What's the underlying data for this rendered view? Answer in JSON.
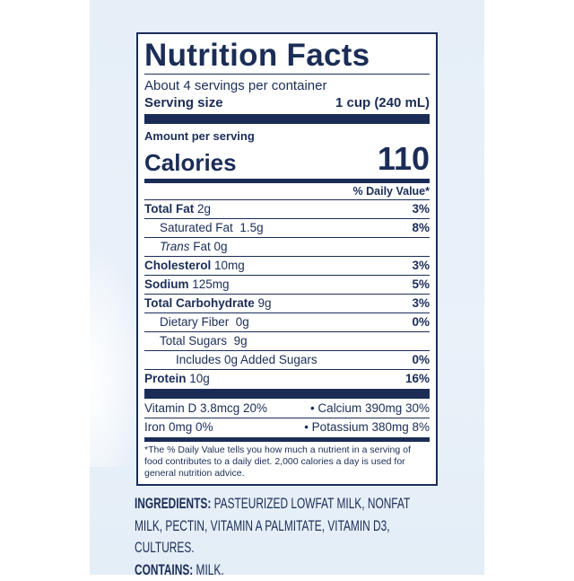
{
  "label": {
    "title": "Nutrition Facts",
    "servings": "About 4 servings per container",
    "serving_size_label": "Serving size",
    "serving_size_value": "1 cup (240 mL)",
    "amount_per_serving": "Amount per serving",
    "calories_label": "Calories",
    "calories_value": "110",
    "dv_header": "% Daily Value*",
    "nutrients": [
      {
        "name": "Total Fat",
        "amount": "2g",
        "dv": "3%"
      },
      {
        "name": "Saturated Fat",
        "amount": "1.5g",
        "dv": "8%"
      },
      {
        "name": "Trans",
        "name_rest": "Fat 0g",
        "amount": "",
        "dv": ""
      },
      {
        "name": "Cholesterol",
        "amount": "10mg",
        "dv": "3%"
      },
      {
        "name": "Sodium",
        "amount": "125mg",
        "dv": "5%"
      },
      {
        "name": "Total Carbohydrate",
        "amount": "9g",
        "dv": "3%"
      },
      {
        "name": "Dietary Fiber",
        "amount": "0g",
        "dv": "0%"
      },
      {
        "name": "Total Sugars",
        "amount": "9g",
        "dv": ""
      },
      {
        "name": "Includes 0g Added Sugars",
        "amount": "",
        "dv": "0%"
      },
      {
        "name": "Protein",
        "amount": "10g",
        "dv": "16%"
      }
    ],
    "vitamins": [
      {
        "left": "Vitamin D 3.8mcg 20%",
        "right": "• Calcium 390mg 30%"
      },
      {
        "left": "Iron 0mg 0%",
        "right": "• Potassium 380mg 8%"
      }
    ],
    "footnote": "*The % Daily Value tells you how much a nutrient in a serving of food contributes to a daily diet. 2,000 calories a day is used for general nutrition advice."
  },
  "ingredients": {
    "label": "INGREDIENTS:",
    "line1": "PASTEURIZED LOWFAT MILK, NONFAT",
    "line2": "MILK, PECTIN, VITAMIN A PALMITATE, VITAMIN D3,",
    "line3": "CULTURES.",
    "contains_label": "CONTAINS:",
    "contains_value": "MILK."
  },
  "colors": {
    "ink": "#1b2d57",
    "panel": "#e6eff8"
  }
}
